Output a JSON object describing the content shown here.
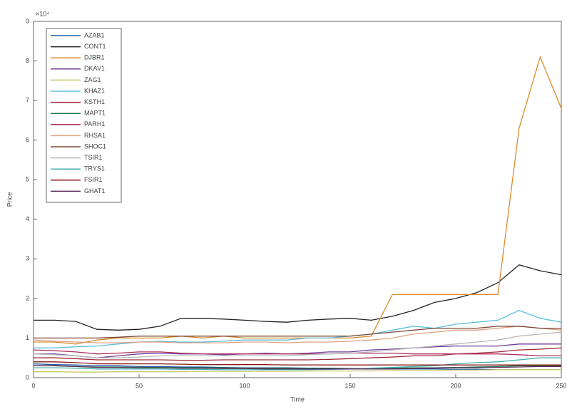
{
  "chart_data": {
    "type": "line",
    "y_label": "Price",
    "x_label": "Time",
    "y_multiplier": "×10⁴",
    "x": [
      0,
      10,
      20,
      30,
      40,
      50,
      60,
      70,
      80,
      90,
      100,
      110,
      120,
      130,
      140,
      150,
      160,
      170,
      180,
      190,
      200,
      210,
      220,
      230,
      240,
      250
    ],
    "xlim": [
      0,
      250
    ],
    "xticks": [
      0,
      50,
      100,
      150,
      200,
      250
    ],
    "ylim": [
      0,
      9
    ],
    "yticks": [
      0,
      1,
      2,
      3,
      4,
      5,
      6,
      7,
      8,
      9
    ],
    "legend": "upper left",
    "series": [
      {
        "name": "AZAB1",
        "color": "#1f5f9f",
        "values": [
          0.35,
          0.33,
          0.32,
          0.3,
          0.3,
          0.28,
          0.28,
          0.27,
          0.27,
          0.26,
          0.25,
          0.25,
          0.25,
          0.24,
          0.24,
          0.23,
          0.23,
          0.22,
          0.22,
          0.22,
          0.21,
          0.21,
          0.2,
          0.2,
          0.2,
          0.2
        ]
      },
      {
        "name": "CONT1",
        "color": "#222222",
        "values": [
          1.45,
          1.45,
          1.42,
          1.22,
          1.2,
          1.22,
          1.3,
          1.5,
          1.5,
          1.48,
          1.45,
          1.42,
          1.4,
          1.45,
          1.48,
          1.5,
          1.45,
          1.55,
          1.7,
          1.9,
          2.0,
          2.15,
          2.4,
          2.85,
          2.7,
          2.6
        ]
      },
      {
        "name": "DJBR1",
        "color": "#d98c2b",
        "values": [
          0.9,
          0.9,
          0.85,
          0.95,
          1.0,
          1.0,
          1.0,
          1.05,
          1.0,
          1.05,
          1.0,
          1.0,
          1.0,
          1.0,
          1.0,
          1.0,
          1.05,
          2.1,
          2.1,
          2.1,
          2.1,
          2.1,
          2.1,
          6.3,
          8.1,
          6.8
        ]
      },
      {
        "name": "DKAV1",
        "color": "#6a3d9a",
        "values": [
          0.6,
          0.6,
          0.55,
          0.5,
          0.55,
          0.6,
          0.62,
          0.6,
          0.6,
          0.58,
          0.6,
          0.62,
          0.6,
          0.62,
          0.65,
          0.65,
          0.7,
          0.72,
          0.75,
          0.78,
          0.8,
          0.8,
          0.8,
          0.85,
          0.85,
          0.85
        ]
      },
      {
        "name": "ZAG1",
        "color": "#c8c870",
        "values": [
          0.15,
          0.15,
          0.14,
          0.14,
          0.15,
          0.15,
          0.15,
          0.15,
          0.16,
          0.16,
          0.16,
          0.16,
          0.16,
          0.17,
          0.17,
          0.17,
          0.17,
          0.18,
          0.18,
          0.18,
          0.19,
          0.19,
          0.2,
          0.2,
          0.2,
          0.2
        ]
      },
      {
        "name": "KHAZ1",
        "color": "#5bc0de",
        "values": [
          0.75,
          0.75,
          0.78,
          0.8,
          0.85,
          0.9,
          0.92,
          0.9,
          0.9,
          0.92,
          0.95,
          0.95,
          0.95,
          1.0,
          1.0,
          1.05,
          1.1,
          1.2,
          1.3,
          1.25,
          1.35,
          1.4,
          1.45,
          1.7,
          1.5,
          1.4
        ]
      },
      {
        "name": "KSTH1",
        "color": "#a0263a",
        "values": [
          0.5,
          0.5,
          0.48,
          0.45,
          0.45,
          0.45,
          0.45,
          0.44,
          0.44,
          0.45,
          0.45,
          0.45,
          0.45,
          0.45,
          0.46,
          0.48,
          0.5,
          0.52,
          0.55,
          0.55,
          0.6,
          0.62,
          0.65,
          0.7,
          0.72,
          0.75
        ]
      },
      {
        "name": "MAPT1",
        "color": "#1e7b4a",
        "values": [
          0.3,
          0.3,
          0.28,
          0.27,
          0.27,
          0.26,
          0.26,
          0.25,
          0.25,
          0.25,
          0.24,
          0.24,
          0.24,
          0.23,
          0.23,
          0.23,
          0.23,
          0.24,
          0.25,
          0.25,
          0.26,
          0.27,
          0.28,
          0.3,
          0.3,
          0.3
        ]
      },
      {
        "name": "PARH1",
        "color": "#b03060",
        "values": [
          0.7,
          0.68,
          0.65,
          0.6,
          0.62,
          0.65,
          0.65,
          0.62,
          0.6,
          0.6,
          0.6,
          0.6,
          0.6,
          0.6,
          0.6,
          0.62,
          0.62,
          0.62,
          0.6,
          0.6,
          0.6,
          0.6,
          0.6,
          0.58,
          0.55,
          0.55
        ]
      },
      {
        "name": "RHSA1",
        "color": "#e0a080",
        "values": [
          0.95,
          0.92,
          0.9,
          0.88,
          0.88,
          0.9,
          0.9,
          0.88,
          0.88,
          0.88,
          0.9,
          0.9,
          0.88,
          0.9,
          0.9,
          0.92,
          0.95,
          1.0,
          1.1,
          1.15,
          1.2,
          1.2,
          1.25,
          1.3,
          1.25,
          1.2
        ]
      },
      {
        "name": "SHOC1",
        "color": "#7a4a3a",
        "values": [
          1.0,
          1.0,
          1.0,
          1.0,
          1.02,
          1.05,
          1.05,
          1.05,
          1.05,
          1.05,
          1.05,
          1.05,
          1.05,
          1.05,
          1.05,
          1.05,
          1.1,
          1.15,
          1.2,
          1.25,
          1.25,
          1.25,
          1.3,
          1.3,
          1.25,
          1.25
        ]
      },
      {
        "name": "TSIR1",
        "color": "#b8b8b8",
        "values": [
          0.6,
          0.58,
          0.55,
          0.5,
          0.5,
          0.52,
          0.55,
          0.55,
          0.55,
          0.55,
          0.55,
          0.55,
          0.55,
          0.58,
          0.6,
          0.62,
          0.65,
          0.7,
          0.75,
          0.8,
          0.85,
          0.9,
          0.95,
          1.05,
          1.1,
          1.15
        ]
      },
      {
        "name": "TRYS1",
        "color": "#40b0b0",
        "values": [
          0.25,
          0.25,
          0.24,
          0.22,
          0.22,
          0.22,
          0.22,
          0.21,
          0.21,
          0.2,
          0.2,
          0.2,
          0.2,
          0.2,
          0.21,
          0.22,
          0.24,
          0.26,
          0.28,
          0.3,
          0.35,
          0.38,
          0.4,
          0.45,
          0.5,
          0.5
        ]
      },
      {
        "name": "FSIR1",
        "color": "#8b1a1a",
        "values": [
          0.4,
          0.4,
          0.38,
          0.35,
          0.35,
          0.35,
          0.35,
          0.34,
          0.33,
          0.33,
          0.33,
          0.33,
          0.32,
          0.32,
          0.32,
          0.32,
          0.32,
          0.32,
          0.32,
          0.32,
          0.32,
          0.32,
          0.32,
          0.32,
          0.32,
          0.32
        ]
      },
      {
        "name": "GHAT1",
        "color": "#5a2a5a",
        "values": [
          0.3,
          0.3,
          0.28,
          0.26,
          0.26,
          0.25,
          0.25,
          0.24,
          0.24,
          0.23,
          0.23,
          0.22,
          0.22,
          0.22,
          0.22,
          0.22,
          0.22,
          0.22,
          0.23,
          0.24,
          0.25,
          0.25,
          0.26,
          0.27,
          0.28,
          0.28
        ]
      }
    ]
  }
}
